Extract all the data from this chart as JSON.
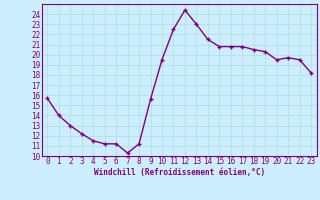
{
  "x": [
    0,
    1,
    2,
    3,
    4,
    5,
    6,
    7,
    8,
    9,
    10,
    11,
    12,
    13,
    14,
    15,
    16,
    17,
    18,
    19,
    20,
    21,
    22,
    23
  ],
  "y": [
    15.7,
    14.0,
    13.0,
    12.2,
    11.5,
    11.2,
    11.2,
    10.3,
    11.2,
    15.6,
    19.5,
    22.5,
    24.4,
    23.0,
    21.5,
    20.8,
    20.8,
    20.8,
    20.5,
    20.3,
    19.5,
    19.7,
    19.5,
    18.2
  ],
  "line_color": "#800080",
  "marker": "+",
  "marker_size": 3,
  "bg_color": "#cceeff",
  "grid_color": "#aadddd",
  "xlabel": "Windchill (Refroidissement éolien,°C)",
  "xlabel_color": "#800080",
  "tick_color": "#800080",
  "ylim": [
    10,
    25
  ],
  "xlim": [
    -0.5,
    23.5
  ],
  "yticks": [
    10,
    11,
    12,
    13,
    14,
    15,
    16,
    17,
    18,
    19,
    20,
    21,
    22,
    23,
    24
  ],
  "xticks": [
    0,
    1,
    2,
    3,
    4,
    5,
    6,
    7,
    8,
    9,
    10,
    11,
    12,
    13,
    14,
    15,
    16,
    17,
    18,
    19,
    20,
    21,
    22,
    23
  ],
  "xlabel_fontsize": 5.5,
  "tick_fontsize": 5.5,
  "linewidth": 1.0
}
